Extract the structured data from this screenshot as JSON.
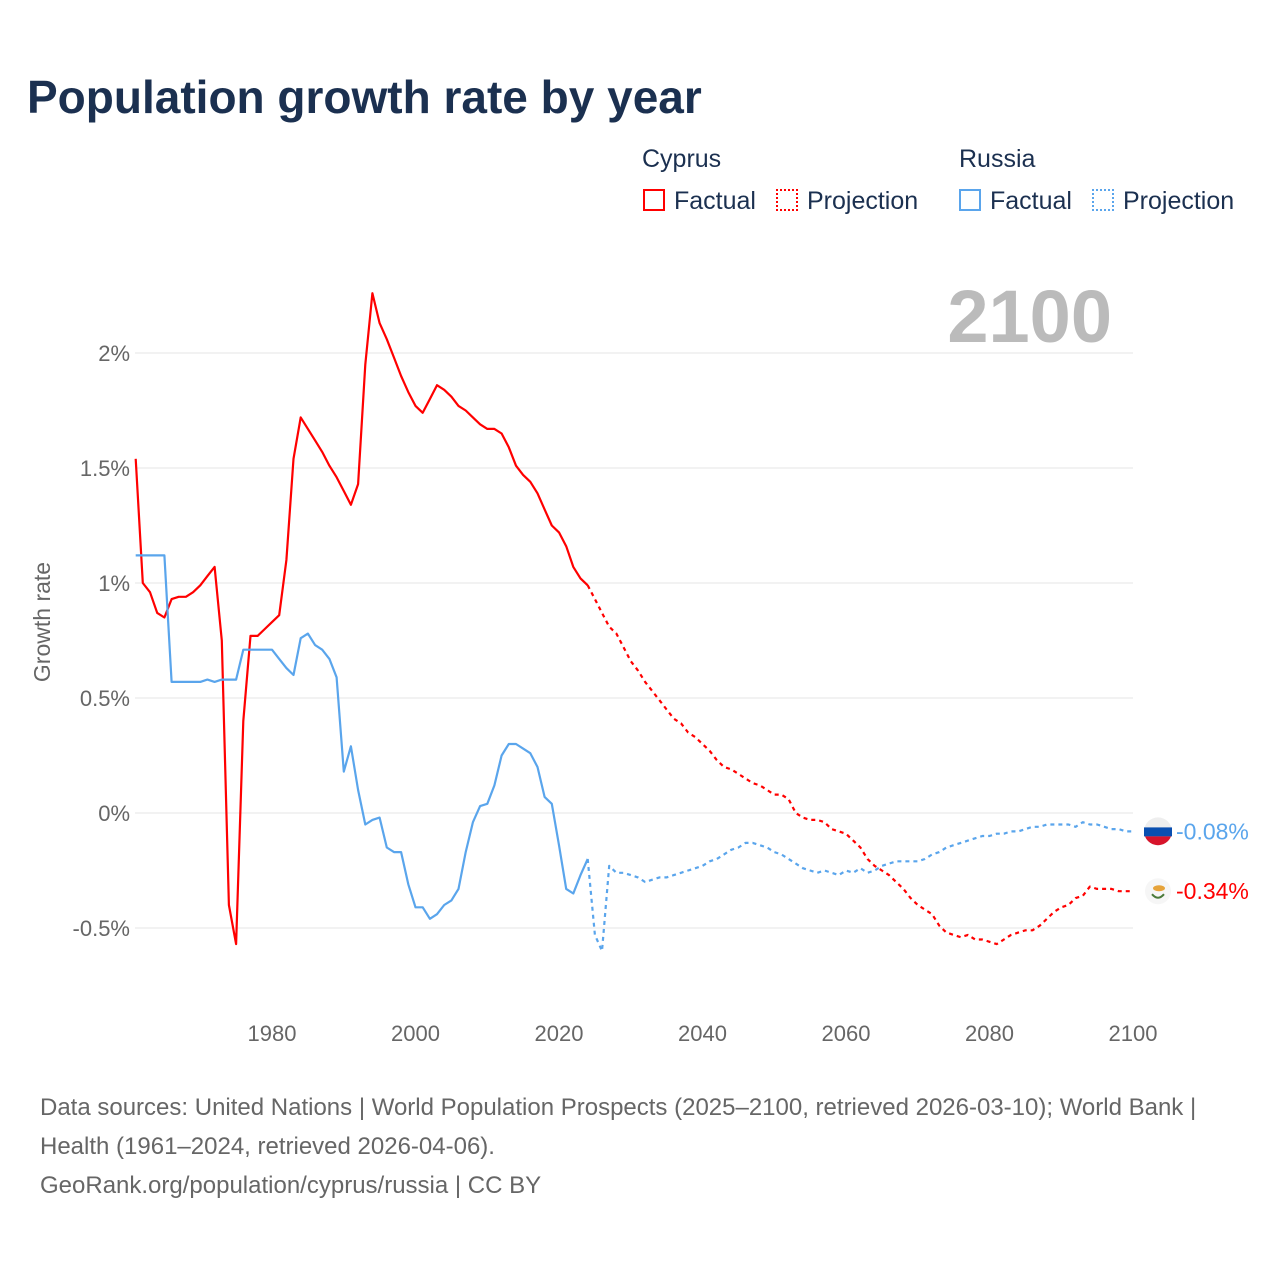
{
  "chart_data": {
    "type": "line",
    "title": "Population growth rate by year",
    "ylabel": "Growth rate",
    "xlabel": "",
    "xlim": [
      1961,
      2100
    ],
    "ylim": [
      -0.75,
      2.4
    ],
    "x_ticks": [
      "1980",
      "2000",
      "2020",
      "2040",
      "2060",
      "2080",
      "2100"
    ],
    "x_tick_values": [
      1980,
      2000,
      2020,
      2040,
      2060,
      2080,
      2100
    ],
    "y_ticks": [
      "2%",
      "1.5%",
      "1%",
      "0.5%",
      "0%",
      "-0.5%"
    ],
    "y_tick_values": [
      2,
      1.5,
      1,
      0.5,
      0,
      -0.5
    ],
    "grid": true,
    "year_label": "2100",
    "legend": {
      "groups": [
        {
          "name": "Cyprus",
          "items": [
            "Factual",
            "Projection"
          ]
        },
        {
          "name": "Russia",
          "items": [
            "Factual",
            "Projection"
          ]
        }
      ],
      "placement": "top-right"
    },
    "series": [
      {
        "name": "Cyprus Factual",
        "color": "#ff0000",
        "dashed": false,
        "start": 1961,
        "values": [
          1.54,
          1.0,
          0.96,
          0.87,
          0.85,
          0.93,
          0.94,
          0.94,
          0.96,
          0.99,
          1.03,
          1.07,
          0.75,
          -0.4,
          -0.57,
          0.4,
          0.77,
          0.77,
          0.8,
          0.83,
          0.86,
          1.1,
          1.54,
          1.72,
          1.67,
          1.62,
          1.57,
          1.51,
          1.46,
          1.4,
          1.34,
          1.43,
          1.95,
          2.26,
          2.13,
          2.06,
          1.98,
          1.9,
          1.83,
          1.77,
          1.74,
          1.8,
          1.86,
          1.84,
          1.81,
          1.77,
          1.75,
          1.72,
          1.69,
          1.67,
          1.67,
          1.65,
          1.59,
          1.51,
          1.47,
          1.44,
          1.39,
          1.32,
          1.25,
          1.22,
          1.16,
          1.07,
          1.02,
          0.99
        ]
      },
      {
        "name": "Cyprus Projection",
        "color": "#ff0000",
        "dashed": true,
        "start": 2024,
        "values": [
          0.99,
          0.93,
          0.87,
          0.81,
          0.78,
          0.72,
          0.66,
          0.62,
          0.57,
          0.53,
          0.49,
          0.45,
          0.41,
          0.39,
          0.35,
          0.33,
          0.3,
          0.27,
          0.23,
          0.2,
          0.19,
          0.17,
          0.15,
          0.13,
          0.12,
          0.1,
          0.08,
          0.08,
          0.06,
          0.0,
          -0.02,
          -0.03,
          -0.03,
          -0.04,
          -0.07,
          -0.08,
          -0.09,
          -0.12,
          -0.15,
          -0.2,
          -0.23,
          -0.25,
          -0.27,
          -0.3,
          -0.33,
          -0.37,
          -0.4,
          -0.42,
          -0.44,
          -0.49,
          -0.52,
          -0.53,
          -0.54,
          -0.53,
          -0.55,
          -0.55,
          -0.56,
          -0.57,
          -0.55,
          -0.53,
          -0.52,
          -0.51,
          -0.51,
          -0.49,
          -0.46,
          -0.43,
          -0.41,
          -0.4,
          -0.37,
          -0.36,
          -0.32,
          -0.33,
          -0.33,
          -0.33,
          -0.34,
          -0.34,
          -0.34
        ]
      },
      {
        "name": "Russia Factual",
        "color": "#5aa5ec",
        "dashed": false,
        "start": 1961,
        "values": [
          1.12,
          1.12,
          1.12,
          1.12,
          1.12,
          0.57,
          0.57,
          0.57,
          0.57,
          0.57,
          0.58,
          0.57,
          0.58,
          0.58,
          0.58,
          0.71,
          0.71,
          0.71,
          0.71,
          0.71,
          0.67,
          0.63,
          0.6,
          0.76,
          0.78,
          0.73,
          0.71,
          0.67,
          0.59,
          0.18,
          0.29,
          0.1,
          -0.05,
          -0.03,
          -0.02,
          -0.15,
          -0.17,
          -0.17,
          -0.31,
          -0.41,
          -0.41,
          -0.46,
          -0.44,
          -0.4,
          -0.38,
          -0.33,
          -0.17,
          -0.04,
          0.03,
          0.04,
          0.12,
          0.25,
          0.3,
          0.3,
          0.28,
          0.26,
          0.2,
          0.07,
          0.04,
          -0.14,
          -0.33,
          -0.35,
          -0.27,
          -0.2
        ]
      },
      {
        "name": "Russia Projection",
        "color": "#5aa5ec",
        "dashed": true,
        "start": 2024,
        "values": [
          -0.2,
          -0.53,
          -0.6,
          -0.23,
          -0.26,
          -0.26,
          -0.27,
          -0.28,
          -0.3,
          -0.29,
          -0.28,
          -0.28,
          -0.27,
          -0.26,
          -0.25,
          -0.24,
          -0.23,
          -0.21,
          -0.2,
          -0.18,
          -0.16,
          -0.15,
          -0.13,
          -0.13,
          -0.14,
          -0.15,
          -0.17,
          -0.18,
          -0.2,
          -0.22,
          -0.24,
          -0.25,
          -0.26,
          -0.25,
          -0.26,
          -0.27,
          -0.25,
          -0.26,
          -0.24,
          -0.26,
          -0.25,
          -0.23,
          -0.22,
          -0.21,
          -0.21,
          -0.21,
          -0.21,
          -0.2,
          -0.18,
          -0.17,
          -0.15,
          -0.14,
          -0.13,
          -0.12,
          -0.11,
          -0.1,
          -0.1,
          -0.09,
          -0.09,
          -0.08,
          -0.08,
          -0.07,
          -0.06,
          -0.06,
          -0.05,
          -0.05,
          -0.05,
          -0.05,
          -0.06,
          -0.04,
          -0.05,
          -0.05,
          -0.06,
          -0.07,
          -0.07,
          -0.08,
          -0.08
        ]
      }
    ],
    "end_labels": [
      {
        "country": "Russia",
        "text": "-0.08%",
        "value": -0.08,
        "color": "#5aa5ec"
      },
      {
        "country": "Cyprus",
        "text": "-0.34%",
        "value": -0.34,
        "color": "#ff0000"
      }
    ]
  },
  "legend": {
    "cyprus": "Cyprus",
    "russia": "Russia",
    "factual": "Factual",
    "projection": "Projection"
  },
  "footer": {
    "line1": "Data sources: United Nations | World Population Prospects (2025–2100, retrieved 2026-03-10); World Bank | Health (1961–2024, retrieved 2026-04-06).",
    "line2": "GeoRank.org/population/cyprus/russia | CC BY"
  }
}
